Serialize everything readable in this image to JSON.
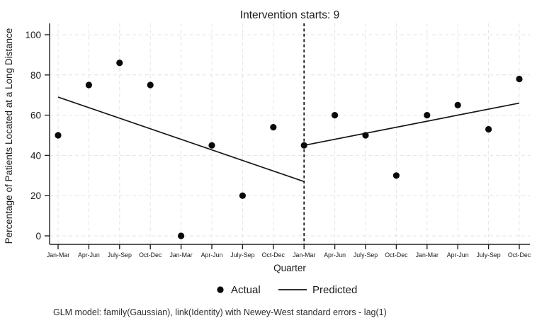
{
  "chart_data": {
    "type": "scatter",
    "title": "Intervention starts: 9",
    "xlabel": "Quarter",
    "ylabel": "Percentage of Patients Located at a Long Distance",
    "x_tick_labels": [
      "Jan-Mar",
      "Apr-Jun",
      "July-Sep",
      "Oct-Dec",
      "Jan-Mar",
      "Apr-Jun",
      "July-Sep",
      "Oct-Dec",
      "Jan-Mar",
      "Apr-Jun",
      "July-Sep",
      "Oct-Dec",
      "Jan-Mar",
      "Apr-Jun",
      "July-Sep",
      "Oct-Dec"
    ],
    "y_ticks": [
      0,
      20,
      40,
      60,
      80,
      100
    ],
    "ylim": [
      -4,
      106
    ],
    "series": [
      {
        "name": "Actual",
        "style": "points",
        "x": [
          1,
          2,
          3,
          4,
          5,
          6,
          7,
          8,
          9,
          10,
          11,
          12,
          13,
          14,
          15,
          16
        ],
        "values": [
          50,
          75,
          86,
          75,
          0,
          45,
          20,
          54,
          45,
          60,
          50,
          30,
          60,
          65,
          53,
          78
        ]
      },
      {
        "name": "Predicted (pre-intervention)",
        "style": "line",
        "x": [
          1,
          9
        ],
        "values": [
          69,
          27
        ]
      },
      {
        "name": "Predicted (post-intervention)",
        "style": "line",
        "x": [
          9,
          16
        ],
        "values": [
          45,
          66
        ]
      }
    ],
    "intervention_x": 9,
    "legend": {
      "position": "bottom-center",
      "entries": [
        {
          "label": "Actual",
          "marker": "dot"
        },
        {
          "label": "Predicted",
          "marker": "line"
        }
      ]
    },
    "note": "GLM model: family(Gaussian), link(Identity) with Newey-West standard errors - lag(1)",
    "grid": {
      "horizontal": true,
      "vertical": true,
      "style": "dashed"
    },
    "colors": {
      "points": "#0a0a0a",
      "predicted_line": "#151515",
      "intervention_line": "#111111",
      "grid": "#e4e4e4",
      "axis": "#222222",
      "background": "#ffffff"
    }
  }
}
